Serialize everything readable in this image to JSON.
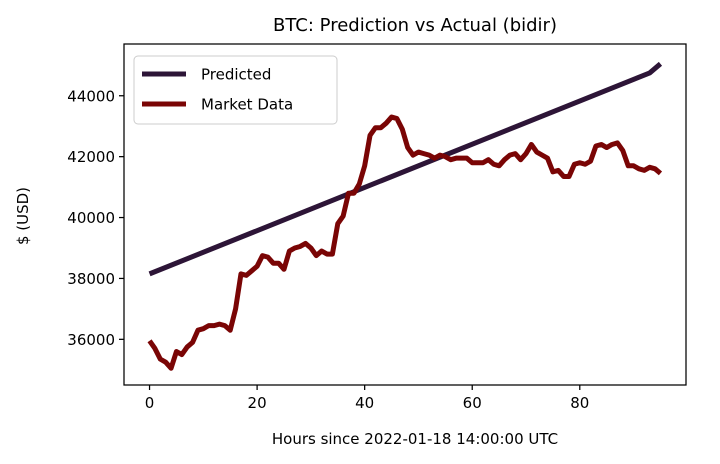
{
  "chart_data": {
    "type": "line",
    "title": "BTC: Prediction vs Actual (bidir)",
    "xlabel": "Hours since 2022-01-18 14:00:00 UTC",
    "ylabel": "$ (USD)",
    "xlim": [
      -4.75,
      99.75
    ],
    "ylim": [
      34500,
      45700
    ],
    "xticks": [
      0,
      20,
      40,
      60,
      80
    ],
    "yticks": [
      36000,
      38000,
      40000,
      42000,
      44000
    ],
    "grid": false,
    "legend_position": "upper-left",
    "series": [
      {
        "name": "Predicted",
        "color": "#2d1537",
        "x": [
          0,
          93,
          95
        ],
        "y": [
          38150,
          44750,
          45050
        ]
      },
      {
        "name": "Market Data",
        "color": "#7a0505",
        "x": [
          0,
          1,
          2,
          3,
          4,
          5,
          6,
          7,
          8,
          9,
          10,
          11,
          12,
          13,
          14,
          15,
          16,
          17,
          18,
          19,
          20,
          21,
          22,
          23,
          24,
          25,
          26,
          27,
          28,
          29,
          30,
          31,
          32,
          33,
          34,
          35,
          36,
          37,
          38,
          39,
          40,
          41,
          42,
          43,
          44,
          45,
          46,
          47,
          48,
          49,
          50,
          51,
          52,
          53,
          54,
          55,
          56,
          57,
          58,
          59,
          60,
          61,
          62,
          63,
          64,
          65,
          66,
          67,
          68,
          69,
          70,
          71,
          72,
          73,
          74,
          75,
          76,
          77,
          78,
          79,
          80,
          81,
          82,
          83,
          84,
          85,
          86,
          87,
          88,
          89,
          90,
          91,
          92,
          93,
          94,
          95
        ],
        "y": [
          35950,
          35700,
          35350,
          35250,
          35050,
          35600,
          35500,
          35750,
          35900,
          36300,
          36350,
          36450,
          36450,
          36500,
          36450,
          36300,
          37000,
          38150,
          38100,
          38250,
          38400,
          38750,
          38700,
          38500,
          38500,
          38300,
          38900,
          39000,
          39050,
          39150,
          39000,
          38750,
          38900,
          38800,
          38800,
          39800,
          40050,
          40800,
          40800,
          41100,
          41700,
          42700,
          42950,
          42950,
          43100,
          43300,
          43250,
          42900,
          42300,
          42050,
          42150,
          42100,
          42050,
          41950,
          42050,
          42000,
          41900,
          41950,
          41950,
          41950,
          41800,
          41800,
          41800,
          41900,
          41750,
          41700,
          41900,
          42050,
          42100,
          41900,
          42100,
          42400,
          42150,
          42050,
          41950,
          41500,
          41550,
          41350,
          41350,
          41750,
          41800,
          41750,
          41850,
          42350,
          42400,
          42300,
          42400,
          42450,
          42200,
          41700,
          41700,
          41600,
          41550,
          41650,
          41600,
          41450
        ]
      }
    ]
  }
}
